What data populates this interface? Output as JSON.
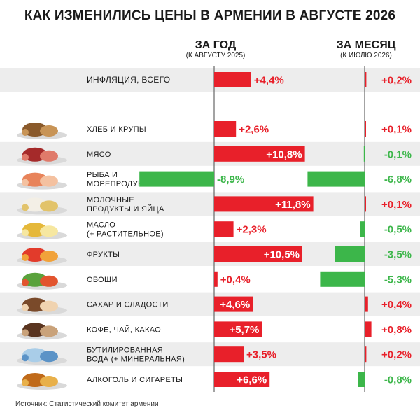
{
  "title": "КАК ИЗМЕНИЛИСЬ ЦЕНЫ В АРМЕНИИ В АВГУСТЕ 2026",
  "columns": {
    "year": {
      "title": "ЗА ГОД",
      "subtitle": "(К АВГУСТУ 2025)"
    },
    "month": {
      "title": "ЗА МЕСЯЦ",
      "subtitle": "(К ИЮЛЮ 2026)"
    }
  },
  "source": "Источник: Статистический комитет армении",
  "colors": {
    "increase": "#e8202a",
    "decrease": "#3cb64a",
    "row_shade": "#ededed",
    "axis": "#666666"
  },
  "chart_data": {
    "type": "bar",
    "orientation": "horizontal",
    "unit": "%",
    "categories": [
      "ИНФЛЯЦИЯ, ВСЕГО",
      "ХЛЕБ И КРУПЫ",
      "МЯСО",
      "РЫБА И МОРЕПРОДУКТЫ",
      "МОЛОЧНЫЕ ПРОДУКТЫ И ЯЙЦА",
      "МАСЛО (+ РАСТИТЕЛЬНОЕ)",
      "ФРУКТЫ",
      "ОВОЩИ",
      "САХАР И СЛАДОСТИ",
      "КОФЕ, ЧАЙ, КАКАО",
      "БУТИЛИРОВАННАЯ ВОДА (+ МИНЕРАЛЬНАЯ)",
      "АЛКОГОЛЬ И СИГАРЕТЫ"
    ],
    "category_lines": [
      [
        "ИНФЛЯЦИЯ, ВСЕГО"
      ],
      [
        "ХЛЕБ И КРУПЫ"
      ],
      [
        "МЯСО"
      ],
      [
        "РЫБА И",
        "МОРЕПРОДУКТЫ"
      ],
      [
        "МОЛОЧНЫЕ",
        "ПРОДУКТЫ И ЯЙЦА"
      ],
      [
        "МАСЛО",
        "(+ РАСТИТЕЛЬНОЕ)"
      ],
      [
        "ФРУКТЫ"
      ],
      [
        "ОВОЩИ"
      ],
      [
        "САХАР И СЛАДОСТИ"
      ],
      [
        "КОФЕ, ЧАЙ, КАКАО"
      ],
      [
        "БУТИЛИРОВАННАЯ",
        "ВОДА (+ МИНЕРАЛЬНАЯ)"
      ],
      [
        "АЛКОГОЛЬ И СИГАРЕТЫ"
      ]
    ],
    "icons": [
      "",
      "bread-icon",
      "meat-icon",
      "fish-icon",
      "dairy-icon",
      "oil-icon",
      "fruit-icon",
      "vegetable-icon",
      "sweets-icon",
      "coffee-icon",
      "water-icon",
      "alcohol-icon"
    ],
    "series": [
      {
        "name": "ЗА ГОД",
        "values": [
          4.4,
          2.6,
          10.8,
          -8.9,
          11.8,
          2.3,
          10.5,
          0.4,
          4.6,
          5.7,
          3.5,
          6.6
        ],
        "labels": [
          "+4,4%",
          "+2,6%",
          "+10,8%",
          "-8,9%",
          "+11,8%",
          "+2,3%",
          "+10,5%",
          "+0,4%",
          "+4,6%",
          "+5,7%",
          "+3,5%",
          "+6,6%"
        ]
      },
      {
        "name": "ЗА МЕСЯЦ",
        "values": [
          0.2,
          0.1,
          -0.1,
          -6.8,
          0.1,
          -0.5,
          -3.5,
          -5.3,
          0.4,
          0.8,
          0.2,
          -0.8
        ],
        "labels": [
          "+0,2%",
          "+0,1%",
          "-0,1%",
          "-6,8%",
          "+0,1%",
          "-0,5%",
          "-3,5%",
          "-5,3%",
          "+0,4%",
          "+0,8%",
          "+0,2%",
          "-0,8%"
        ]
      }
    ]
  }
}
